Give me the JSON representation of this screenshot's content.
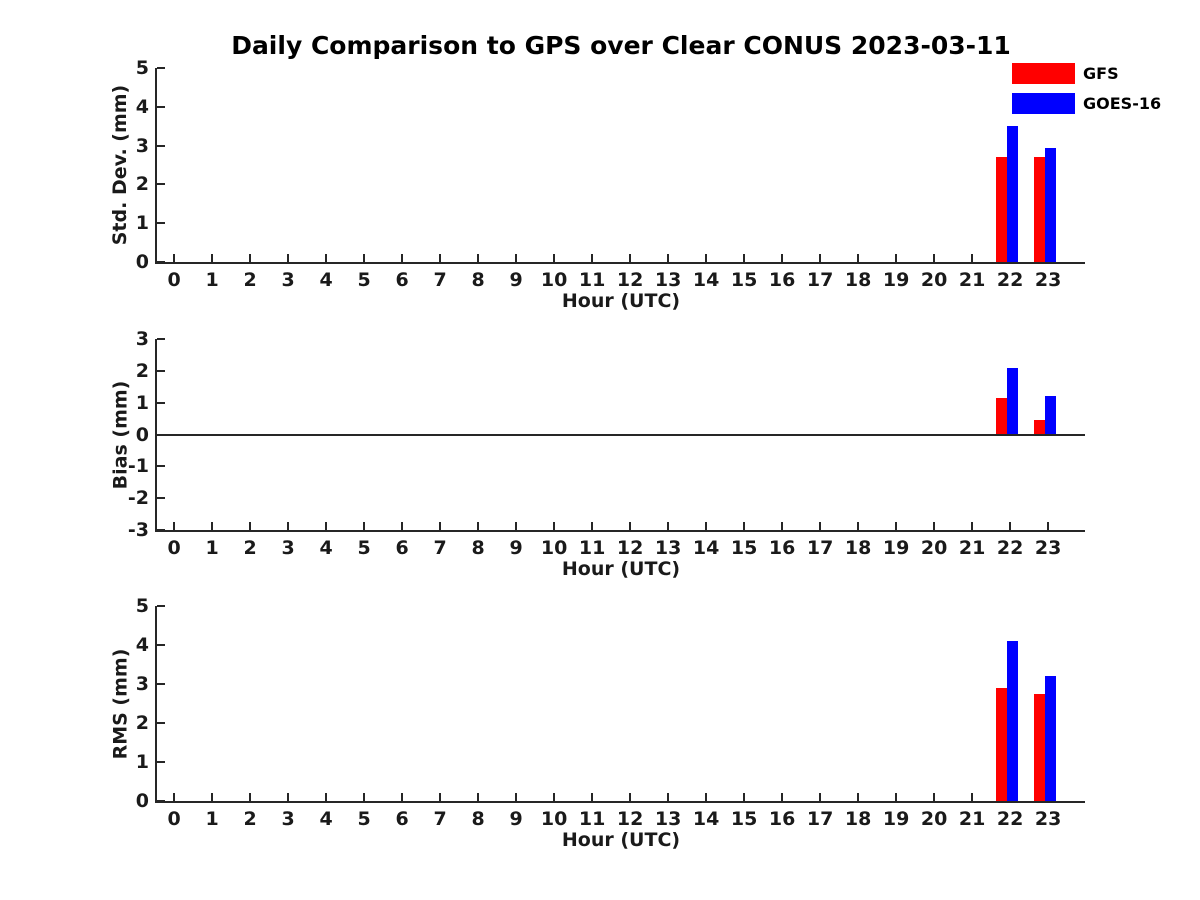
{
  "figure_title": "Daily Comparison to GPS over Clear CONUS 2023-03-11",
  "legend": {
    "position": "upper-right",
    "items": [
      {
        "label": "GFS",
        "color": "#ff0000"
      },
      {
        "label": "GOES-16",
        "color": "#0000ff"
      }
    ]
  },
  "chart_data": [
    {
      "type": "bar",
      "name": "std-dev",
      "xlabel": "Hour (UTC)",
      "ylabel": "Std. Dev. (mm)",
      "xlim": [
        -0.45,
        23.97
      ],
      "ylim": [
        0,
        5
      ],
      "yticks": [
        0,
        1,
        2,
        3,
        4,
        5
      ],
      "xticks": [
        0,
        1,
        2,
        3,
        4,
        5,
        6,
        7,
        8,
        9,
        10,
        11,
        12,
        13,
        14,
        15,
        16,
        17,
        18,
        19,
        20,
        21,
        22,
        23
      ],
      "grid": false,
      "zero_line": false,
      "series": [
        {
          "name": "GFS",
          "color": "#ff0000",
          "points": [
            {
              "x": 22,
              "y": 2.7
            },
            {
              "x": 23,
              "y": 2.7
            }
          ]
        },
        {
          "name": "GOES-16",
          "color": "#0000ff",
          "points": [
            {
              "x": 22,
              "y": 3.5
            },
            {
              "x": 23,
              "y": 2.95
            }
          ]
        }
      ]
    },
    {
      "type": "bar",
      "name": "bias",
      "xlabel": "Hour (UTC)",
      "ylabel": "Bias (mm)",
      "xlim": [
        -0.45,
        23.97
      ],
      "ylim": [
        -3,
        3
      ],
      "yticks": [
        -3,
        -2,
        -1,
        0,
        1,
        2,
        3
      ],
      "xticks": [
        0,
        1,
        2,
        3,
        4,
        5,
        6,
        7,
        8,
        9,
        10,
        11,
        12,
        13,
        14,
        15,
        16,
        17,
        18,
        19,
        20,
        21,
        22,
        23
      ],
      "grid": false,
      "zero_line": true,
      "series": [
        {
          "name": "GFS",
          "color": "#ff0000",
          "points": [
            {
              "x": 22,
              "y": 1.15
            },
            {
              "x": 23,
              "y": 0.45
            }
          ]
        },
        {
          "name": "GOES-16",
          "color": "#0000ff",
          "points": [
            {
              "x": 22,
              "y": 2.1
            },
            {
              "x": 23,
              "y": 1.2
            }
          ]
        }
      ]
    },
    {
      "type": "bar",
      "name": "rms",
      "xlabel": "Hour (UTC)",
      "ylabel": "RMS (mm)",
      "xlim": [
        -0.45,
        23.97
      ],
      "ylim": [
        0,
        5
      ],
      "yticks": [
        0,
        1,
        2,
        3,
        4,
        5
      ],
      "xticks": [
        0,
        1,
        2,
        3,
        4,
        5,
        6,
        7,
        8,
        9,
        10,
        11,
        12,
        13,
        14,
        15,
        16,
        17,
        18,
        19,
        20,
        21,
        22,
        23
      ],
      "grid": false,
      "zero_line": false,
      "series": [
        {
          "name": "GFS",
          "color": "#ff0000",
          "points": [
            {
              "x": 22,
              "y": 2.9
            },
            {
              "x": 23,
              "y": 2.75
            }
          ]
        },
        {
          "name": "GOES-16",
          "color": "#0000ff",
          "points": [
            {
              "x": 22,
              "y": 4.1
            },
            {
              "x": 23,
              "y": 3.2
            }
          ]
        }
      ]
    }
  ]
}
